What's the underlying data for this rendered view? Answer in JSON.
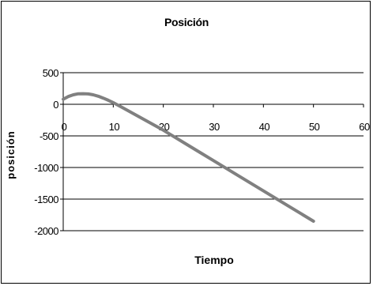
{
  "chart_data": {
    "type": "line",
    "title": "Posición",
    "xlabel": "Tiempo",
    "ylabel": "posición",
    "xlim": [
      0,
      60
    ],
    "ylim": [
      -2000,
      500
    ],
    "xticks": [
      0,
      10,
      20,
      30,
      40,
      50,
      60
    ],
    "yticks": [
      500,
      0,
      -500,
      -1000,
      -1500,
      -2000
    ],
    "grid": "horizontal",
    "legend": "none",
    "series": [
      {
        "color": "#808080",
        "x": [
          0,
          1,
          2,
          3,
          4,
          5,
          6,
          7,
          8,
          9,
          10,
          12,
          15,
          20,
          25,
          30,
          35,
          40,
          45,
          50
        ],
        "y": [
          80,
          122,
          150,
          166,
          168,
          164,
          150,
          128,
          98,
          64,
          26,
          -60,
          -190,
          -410,
          -650,
          -890,
          -1130,
          -1370,
          -1610,
          -1850
        ]
      }
    ]
  }
}
